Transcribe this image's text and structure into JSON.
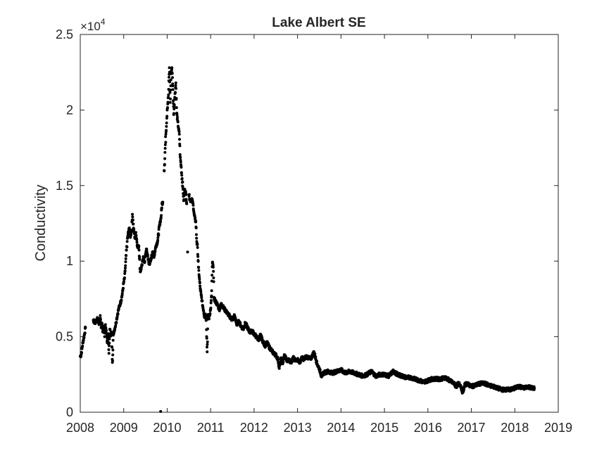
{
  "chart_data": {
    "type": "scatter",
    "title": "Lake Albert SE",
    "xlabel": "",
    "ylabel": "Conductivity",
    "y_exponent_label": "×10",
    "y_exponent_power": "4",
    "xlim": [
      2008,
      2019
    ],
    "ylim": [
      0,
      25000
    ],
    "xticks": [
      "2008",
      "2009",
      "2010",
      "2011",
      "2012",
      "2013",
      "2014",
      "2015",
      "2016",
      "2017",
      "2018",
      "2019"
    ],
    "yticks": [
      {
        "value": 0,
        "label": "0"
      },
      {
        "value": 5000,
        "label": "0.5"
      },
      {
        "value": 10000,
        "label": "1"
      },
      {
        "value": 15000,
        "label": "1.5"
      },
      {
        "value": 20000,
        "label": "2"
      },
      {
        "value": 25000,
        "label": "2.5"
      }
    ],
    "grid": false,
    "marker_color": "#000000",
    "series": [
      {
        "points": [
          [
            2008.0,
            3700
          ],
          [
            2008.02,
            3800
          ],
          [
            2008.04,
            4200
          ],
          [
            2008.06,
            4600
          ],
          [
            2008.08,
            4900
          ],
          [
            2008.1,
            5200
          ],
          [
            2008.12,
            5600
          ],
          [
            2008.3,
            6100
          ],
          [
            2008.33,
            5900
          ],
          [
            2008.36,
            6000
          ],
          [
            2008.4,
            6200
          ],
          [
            2008.43,
            5800
          ],
          [
            2008.46,
            6400
          ],
          [
            2008.48,
            5600
          ],
          [
            2008.5,
            5900
          ],
          [
            2008.52,
            5300
          ],
          [
            2008.54,
            5700
          ],
          [
            2008.56,
            5000
          ],
          [
            2008.58,
            5800
          ],
          [
            2008.6,
            5400
          ],
          [
            2008.62,
            4600
          ],
          [
            2008.64,
            5200
          ],
          [
            2008.66,
            3900
          ],
          [
            2008.68,
            5500
          ],
          [
            2008.7,
            5100
          ],
          [
            2008.72,
            5300
          ],
          [
            2008.74,
            3300
          ],
          [
            2008.76,
            5100
          ],
          [
            2008.78,
            5400
          ],
          [
            2008.8,
            5600
          ],
          [
            2008.82,
            5900
          ],
          [
            2008.84,
            6200
          ],
          [
            2008.86,
            6500
          ],
          [
            2008.88,
            6800
          ],
          [
            2008.9,
            7000
          ],
          [
            2008.92,
            7200
          ],
          [
            2008.94,
            7400
          ],
          [
            2008.96,
            7700
          ],
          [
            2008.98,
            8100
          ],
          [
            2009.0,
            8600
          ],
          [
            2009.02,
            8900
          ],
          [
            2009.04,
            9700
          ],
          [
            2009.08,
            11300
          ],
          [
            2009.1,
            11800
          ],
          [
            2009.13,
            12200
          ],
          [
            2009.15,
            11600
          ],
          [
            2009.18,
            12000
          ],
          [
            2009.2,
            13100
          ],
          [
            2009.23,
            12100
          ],
          [
            2009.26,
            11500
          ],
          [
            2009.28,
            11900
          ],
          [
            2009.32,
            10900
          ],
          [
            2009.35,
            11000
          ],
          [
            2009.38,
            9300
          ],
          [
            2009.42,
            9700
          ],
          [
            2009.45,
            10300
          ],
          [
            2009.48,
            9900
          ],
          [
            2009.52,
            10800
          ],
          [
            2009.55,
            10400
          ],
          [
            2009.58,
            9800
          ],
          [
            2009.62,
            10000
          ],
          [
            2009.66,
            10600
          ],
          [
            2009.7,
            10300
          ],
          [
            2009.74,
            11000
          ],
          [
            2009.78,
            11300
          ],
          [
            2009.82,
            12300
          ],
          [
            2009.86,
            12900
          ],
          [
            2009.88,
            13800
          ],
          [
            2009.9,
            13900
          ],
          [
            2009.85,
            50
          ],
          [
            2009.93,
            16000
          ],
          [
            2009.97,
            18400
          ],
          [
            2010.0,
            20000
          ],
          [
            2010.03,
            21000
          ],
          [
            2010.05,
            22800
          ],
          [
            2010.07,
            20500
          ],
          [
            2010.09,
            22400
          ],
          [
            2010.11,
            22800
          ],
          [
            2010.13,
            21600
          ],
          [
            2010.15,
            19700
          ],
          [
            2010.17,
            20700
          ],
          [
            2010.2,
            21800
          ],
          [
            2010.22,
            19800
          ],
          [
            2010.24,
            19300
          ],
          [
            2010.26,
            18800
          ],
          [
            2010.28,
            18400
          ],
          [
            2010.3,
            16900
          ],
          [
            2010.32,
            16300
          ],
          [
            2010.36,
            14900
          ],
          [
            2010.38,
            14000
          ],
          [
            2010.4,
            14700
          ],
          [
            2010.43,
            14500
          ],
          [
            2010.45,
            13800
          ],
          [
            2010.47,
            10600
          ],
          [
            2010.5,
            14400
          ],
          [
            2010.53,
            14000
          ],
          [
            2010.57,
            14100
          ],
          [
            2010.6,
            13700
          ],
          [
            2010.62,
            13100
          ],
          [
            2010.64,
            12800
          ],
          [
            2010.66,
            12600
          ],
          [
            2010.68,
            11300
          ],
          [
            2010.7,
            10900
          ],
          [
            2010.72,
            9600
          ],
          [
            2010.74,
            8900
          ],
          [
            2010.76,
            8200
          ],
          [
            2010.78,
            7800
          ],
          [
            2010.8,
            7400
          ],
          [
            2010.82,
            7000
          ],
          [
            2010.84,
            6700
          ],
          [
            2010.86,
            6300
          ],
          [
            2010.88,
            6500
          ],
          [
            2010.9,
            6100
          ],
          [
            2010.92,
            4000
          ],
          [
            2010.94,
            6400
          ],
          [
            2010.96,
            6200
          ],
          [
            2011.0,
            6800
          ],
          [
            2011.02,
            7700
          ],
          [
            2011.04,
            9900
          ],
          [
            2011.06,
            9600
          ],
          [
            2011.08,
            7500
          ],
          [
            2011.12,
            7300
          ],
          [
            2011.16,
            7100
          ],
          [
            2011.2,
            6800
          ],
          [
            2011.25,
            7200
          ],
          [
            2011.3,
            6900
          ],
          [
            2011.35,
            6700
          ],
          [
            2011.4,
            6500
          ],
          [
            2011.45,
            6300
          ],
          [
            2011.5,
            6100
          ],
          [
            2011.55,
            6400
          ],
          [
            2011.6,
            5800
          ],
          [
            2011.65,
            6000
          ],
          [
            2011.7,
            5700
          ],
          [
            2011.75,
            5500
          ],
          [
            2011.8,
            5900
          ],
          [
            2011.85,
            5600
          ],
          [
            2011.9,
            5300
          ],
          [
            2011.95,
            5400
          ],
          [
            2012.0,
            5200
          ],
          [
            2012.05,
            5000
          ],
          [
            2012.1,
            4800
          ],
          [
            2012.15,
            5100
          ],
          [
            2012.2,
            4700
          ],
          [
            2012.25,
            4400
          ],
          [
            2012.3,
            4600
          ],
          [
            2012.35,
            4300
          ],
          [
            2012.4,
            4100
          ],
          [
            2012.45,
            3900
          ],
          [
            2012.5,
            3800
          ],
          [
            2012.55,
            3500
          ],
          [
            2012.58,
            2900
          ],
          [
            2012.62,
            3600
          ],
          [
            2012.66,
            3200
          ],
          [
            2012.7,
            3800
          ],
          [
            2012.75,
            3400
          ],
          [
            2012.8,
            3500
          ],
          [
            2012.85,
            3300
          ],
          [
            2012.9,
            3600
          ],
          [
            2012.95,
            3400
          ],
          [
            2013.0,
            3500
          ],
          [
            2013.05,
            3300
          ],
          [
            2013.1,
            3600
          ],
          [
            2013.15,
            3500
          ],
          [
            2013.2,
            3700
          ],
          [
            2013.25,
            3600
          ],
          [
            2013.3,
            3500
          ],
          [
            2013.38,
            4000
          ],
          [
            2013.45,
            3200
          ],
          [
            2013.5,
            2900
          ],
          [
            2013.55,
            2400
          ],
          [
            2013.6,
            2600
          ],
          [
            2013.7,
            2700
          ],
          [
            2013.8,
            2600
          ],
          [
            2013.9,
            2700
          ],
          [
            2014.0,
            2800
          ],
          [
            2014.1,
            2600
          ],
          [
            2014.2,
            2700
          ],
          [
            2014.3,
            2600
          ],
          [
            2014.4,
            2500
          ],
          [
            2014.5,
            2400
          ],
          [
            2014.6,
            2500
          ],
          [
            2014.7,
            2700
          ],
          [
            2014.8,
            2400
          ],
          [
            2014.9,
            2500
          ],
          [
            2015.0,
            2500
          ],
          [
            2015.1,
            2400
          ],
          [
            2015.2,
            2700
          ],
          [
            2015.3,
            2500
          ],
          [
            2015.4,
            2400
          ],
          [
            2015.5,
            2300
          ],
          [
            2015.6,
            2300
          ],
          [
            2015.7,
            2200
          ],
          [
            2015.8,
            2100
          ],
          [
            2015.9,
            2000
          ],
          [
            2016.0,
            2100
          ],
          [
            2016.1,
            2200
          ],
          [
            2016.2,
            2200
          ],
          [
            2016.3,
            2200
          ],
          [
            2016.4,
            2300
          ],
          [
            2016.5,
            2100
          ],
          [
            2016.6,
            1900
          ],
          [
            2016.65,
            1700
          ],
          [
            2016.7,
            1900
          ],
          [
            2016.75,
            1800
          ],
          [
            2016.8,
            1300
          ],
          [
            2016.85,
            1800
          ],
          [
            2016.9,
            1900
          ],
          [
            2017.0,
            1700
          ],
          [
            2017.1,
            1800
          ],
          [
            2017.2,
            1900
          ],
          [
            2017.3,
            1900
          ],
          [
            2017.4,
            1800
          ],
          [
            2017.5,
            1700
          ],
          [
            2017.6,
            1600
          ],
          [
            2017.7,
            1500
          ],
          [
            2017.8,
            1500
          ],
          [
            2017.9,
            1500
          ],
          [
            2018.0,
            1600
          ],
          [
            2018.1,
            1700
          ],
          [
            2018.2,
            1600
          ],
          [
            2018.3,
            1700
          ],
          [
            2018.4,
            1600
          ],
          [
            2018.45,
            1600
          ]
        ]
      }
    ]
  }
}
